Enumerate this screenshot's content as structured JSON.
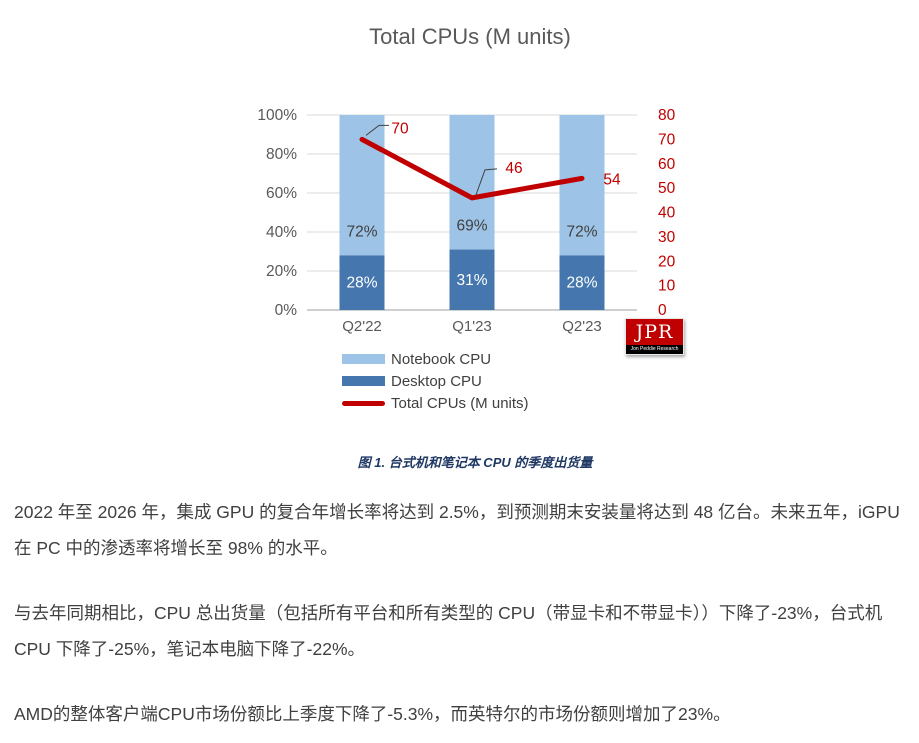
{
  "chart_data": {
    "type": "bar",
    "subtype": "stacked-percent-with-line",
    "title": "Total CPUs (M units)",
    "categories": [
      "Q2'22",
      "Q1'23",
      "Q2'23"
    ],
    "series": [
      {
        "name": "Notebook CPU",
        "type": "bar",
        "values": [
          72,
          69,
          72
        ],
        "labels": [
          "72%",
          "69%",
          "72%"
        ],
        "color": "#9DC3E6",
        "label_color": "#404040"
      },
      {
        "name": "Desktop CPU",
        "type": "bar",
        "values": [
          28,
          31,
          28
        ],
        "labels": [
          "28%",
          "31%",
          "28%"
        ],
        "color": "#4577AE",
        "label_color": "#FFFFFF"
      },
      {
        "name": "Total CPUs (M units)",
        "type": "line",
        "axis": "right",
        "values": [
          70,
          46,
          54
        ],
        "color": "#C00000",
        "label_color": "#C00000"
      }
    ],
    "left_axis": {
      "ticks": [
        "100%",
        "80%",
        "60%",
        "40%",
        "20%",
        "0%"
      ],
      "min": 0,
      "max": 100,
      "color": "#595959"
    },
    "right_axis": {
      "ticks": [
        "80",
        "70",
        "60",
        "50",
        "40",
        "30",
        "20",
        "10",
        "0"
      ],
      "min": 0,
      "max": 80,
      "color": "#C00000"
    },
    "grid": true,
    "gridline_color": "#D9D9D9",
    "baseline_color": "#BFBFBF",
    "legend_position": "bottom-left"
  },
  "legend": {
    "items": [
      {
        "label": "Notebook CPU",
        "swatch": "bar",
        "color": "#9DC3E6"
      },
      {
        "label": "Desktop CPU",
        "swatch": "bar",
        "color": "#4577AE"
      },
      {
        "label": "Total CPUs (M units)",
        "swatch": "line",
        "color": "#C00000"
      }
    ]
  },
  "logo": {
    "text": "JPR",
    "subtext": "Jon Peddie Research",
    "bg": "#C00000",
    "strip": "#000000"
  },
  "figure": {
    "caption": "图 1. 台式机和笔记本 CPU 的季度出货量"
  },
  "article": {
    "paragraphs": [
      "2022 年至 2026 年，集成 GPU 的复合年增长率将达到 2.5%，到预测期末安装量将达到 48 亿台。未来五年，iGPU 在 PC 中的渗透率将增长至 98% 的水平。",
      "与去年同期相比，CPU 总出货量（包括所有平台和所有类型的 CPU（带显卡和不带显卡））下降了-23%，台式机 CPU 下降了-25%，笔记本电脑下降了-22%。",
      "AMD的整体客户端CPU市场份额比上季度下降了-5.3%，而英特尔的市场份额则增加了23%。"
    ]
  }
}
